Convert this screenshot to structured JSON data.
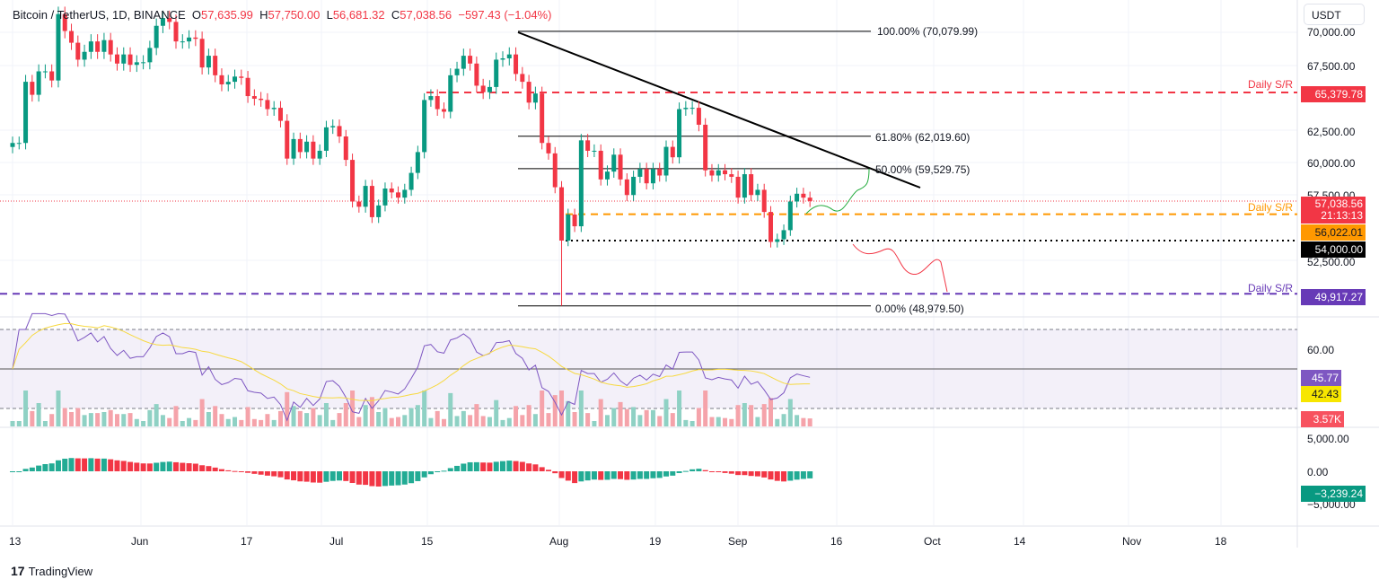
{
  "header": {
    "symbol": "Bitcoin / TetherUS, 1D, BINANCE",
    "open_label": "O",
    "open": "57,635.99",
    "high_label": "H",
    "high": "57,750.00",
    "low_label": "L",
    "low": "56,681.32",
    "close_label": "C",
    "close": "57,038.56",
    "change": "−597.43 (−1.04%)"
  },
  "currency": "USDT",
  "colors": {
    "up": "#089981",
    "down": "#f23645",
    "rsi": "#7e57c2",
    "rsi_ma": "#f7d940",
    "sr_red": "#f23645",
    "sr_orange": "#ff9800",
    "sr_purple": "#673ab7"
  },
  "price_axis": [
    "70,000.00",
    "67,500.00",
    "65,379.78",
    "62,500.00",
    "60,000.00",
    "57,500.00",
    "52,500.00"
  ],
  "price_ticks": [
    70000,
    67500,
    62500,
    60000,
    57500,
    52500
  ],
  "tags": {
    "last_price": "57,038.56",
    "countdown": "21:13:13",
    "orange_sr": "56,022.01",
    "black_level": "54,000.00",
    "red_sr": "65,379.78",
    "purple_sr": "49,917.27",
    "rsi": "45.77",
    "rsi_ma": "42.43",
    "volume": "3.57K",
    "macd": "−3,239.24"
  },
  "sr_labels": {
    "red": "Daily S/R",
    "orange": "Daily S/R",
    "purple": "Daily S/R"
  },
  "fib": {
    "l100": "100.00% (70,079.99)",
    "l618": "61.80% (62,019.60)",
    "l50": "50.00% (59,529.75)",
    "l0": "0.00% (48,979.50)"
  },
  "rsi_axis": {
    "t60": "60.00"
  },
  "macd_axis": {
    "t5000": "5,000.00",
    "t0": "0.00",
    "tm5000": "−5,000.00"
  },
  "time_axis": [
    "13",
    "Jun",
    "17",
    "Jul",
    "15",
    "Aug",
    "19",
    "Sep",
    "16",
    "Oct",
    "14",
    "Nov",
    "18"
  ],
  "footer": {
    "brand": "TradingView"
  },
  "chart_data": {
    "type": "candlestick",
    "title": "Bitcoin / TetherUS, 1D, BINANCE",
    "x_start": "2024-05-13",
    "x_end": "2024-09-12",
    "closes": [
      61500,
      61500,
      66200,
      65200,
      67000,
      67000,
      66300,
      71400,
      70100,
      69200,
      67900,
      68500,
      69300,
      68500,
      69400,
      68300,
      67600,
      68300,
      67500,
      67700,
      67700,
      68800,
      70500,
      71100,
      70800,
      69300,
      69300,
      69600,
      69500,
      67300,
      68200,
      66700,
      66000,
      66200,
      66600,
      66500,
      65100,
      64900,
      64800,
      64100,
      64200,
      63200,
      60300,
      61800,
      60800,
      61600,
      60300,
      60900,
      62700,
      62800,
      62000,
      60200,
      57000,
      56600,
      58200,
      55800,
      56700,
      58000,
      57700,
      57300,
      57900,
      59200,
      60800,
      64800,
      65100,
      64100,
      63900,
      66700,
      67200,
      68200,
      67600,
      65900,
      65400,
      65800,
      67900,
      68000,
      68300,
      66800,
      66200,
      64600,
      65300,
      61500,
      60700,
      58100,
      54000,
      56000,
      55100,
      61700,
      60900,
      60900,
      58700,
      59300,
      60600,
      58700,
      57500,
      58900,
      59500,
      58400,
      59500,
      59000,
      61200,
      60400,
      64100,
      64200,
      64200,
      62900,
      59400,
      59000,
      59400,
      59100,
      58900,
      57300,
      59100,
      57500,
      57900,
      56200,
      53900,
      54100,
      54800,
      57000,
      57600,
      57300,
      57038.56
    ],
    "notable_low": {
      "date": "2024-08-05",
      "value": 48979.5
    },
    "ylim": [
      48000,
      71000
    ],
    "horizontal_levels": [
      {
        "label": "Daily S/R",
        "value": 65379.78,
        "color": "#f23645"
      },
      {
        "label": "Daily S/R",
        "value": 56022.01,
        "color": "#ff9800"
      },
      {
        "value": 54000,
        "color": "#000000"
      },
      {
        "label": "Daily S/R",
        "value": 49917.27,
        "color": "#673ab7"
      }
    ],
    "fibonacci": [
      {
        "level": "100.00%",
        "value": 70079.99
      },
      {
        "level": "61.80%",
        "value": 62019.6
      },
      {
        "level": "50.00%",
        "value": 59529.75
      },
      {
        "level": "0.00%",
        "value": 48979.5
      }
    ],
    "grid": true
  }
}
